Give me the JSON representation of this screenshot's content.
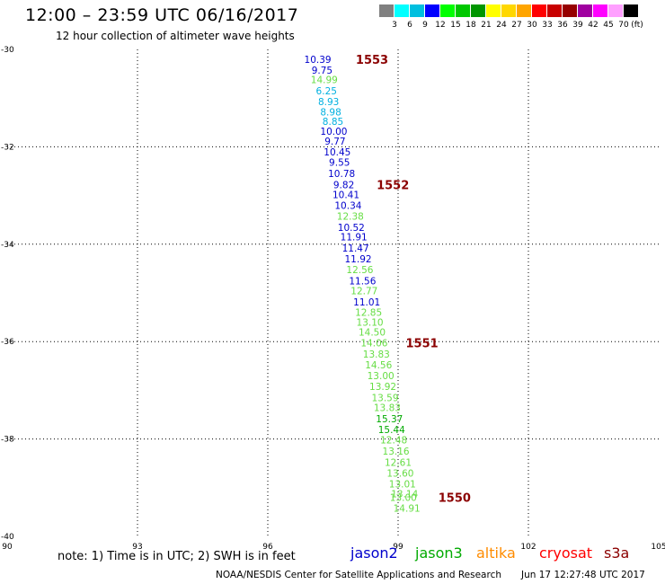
{
  "title": "12:00 – 23:59 UTC 06/16/2017",
  "subtitle": "12 hour collection of altimeter wave heights",
  "legend": {
    "unit": "(ft)",
    "colors": [
      "#808080",
      "#00ffff",
      "#00bfdf",
      "#0000ff",
      "#00ff00",
      "#00c800",
      "#009600",
      "#ffff00",
      "#ffd700",
      "#ffa500",
      "#ff0000",
      "#c80000",
      "#960000",
      "#a000a0",
      "#ff00ff",
      "#ffa0ff",
      "#000000"
    ],
    "labels": [
      "3",
      "6",
      "9",
      "12",
      "15",
      "18",
      "21",
      "24",
      "27",
      "30",
      "33",
      "36",
      "39",
      "42",
      "45",
      "70"
    ]
  },
  "axes": {
    "lon_min": 90,
    "lon_max": 105,
    "lat_min": -40,
    "lat_max": -30,
    "x_ticks": [
      "90",
      "93",
      "96",
      "99",
      "102",
      "105"
    ],
    "y_ticks": [
      "-30",
      "-32",
      "-34",
      "-36",
      "-38",
      "-40"
    ]
  },
  "observations": [
    {
      "lat": -30.2,
      "lon": 97.15,
      "v": "10.39",
      "c": "#0000cc"
    },
    {
      "lat": -30.42,
      "lon": 97.25,
      "v": "9.75",
      "c": "#0000cc"
    },
    {
      "lat": -30.62,
      "lon": 97.3,
      "v": "14.99",
      "c": "#66dd44"
    },
    {
      "lat": -30.85,
      "lon": 97.35,
      "v": "6.25",
      "c": "#00b0e0"
    },
    {
      "lat": -31.07,
      "lon": 97.4,
      "v": "8.93",
      "c": "#00b0e0"
    },
    {
      "lat": -31.28,
      "lon": 97.45,
      "v": "8.98",
      "c": "#00b0e0"
    },
    {
      "lat": -31.48,
      "lon": 97.5,
      "v": "8.85",
      "c": "#00b0e0"
    },
    {
      "lat": -31.68,
      "lon": 97.52,
      "v": "10.00",
      "c": "#0000cc"
    },
    {
      "lat": -31.88,
      "lon": 97.55,
      "v": "9.77",
      "c": "#0000cc"
    },
    {
      "lat": -32.1,
      "lon": 97.6,
      "v": "10.45",
      "c": "#0000cc"
    },
    {
      "lat": -32.32,
      "lon": 97.65,
      "v": "9.55",
      "c": "#0000cc"
    },
    {
      "lat": -32.55,
      "lon": 97.7,
      "v": "10.78",
      "c": "#0000cc"
    },
    {
      "lat": -32.78,
      "lon": 97.75,
      "v": "9.82",
      "c": "#0000cc"
    },
    {
      "lat": -32.98,
      "lon": 97.8,
      "v": "10.41",
      "c": "#0000cc"
    },
    {
      "lat": -33.2,
      "lon": 97.85,
      "v": "10.34",
      "c": "#0000cc"
    },
    {
      "lat": -33.42,
      "lon": 97.9,
      "v": "12.38",
      "c": "#66dd44"
    },
    {
      "lat": -33.65,
      "lon": 97.92,
      "v": "10.52",
      "c": "#0000cc"
    },
    {
      "lat": -33.85,
      "lon": 97.98,
      "v": "11.91",
      "c": "#0000cc"
    },
    {
      "lat": -34.08,
      "lon": 98.02,
      "v": "11.47",
      "c": "#0000cc"
    },
    {
      "lat": -34.3,
      "lon": 98.08,
      "v": "11.92",
      "c": "#0000cc"
    },
    {
      "lat": -34.52,
      "lon": 98.12,
      "v": "12.56",
      "c": "#66dd44"
    },
    {
      "lat": -34.75,
      "lon": 98.18,
      "v": "11.56",
      "c": "#0000cc"
    },
    {
      "lat": -34.95,
      "lon": 98.22,
      "v": "12.77",
      "c": "#66dd44"
    },
    {
      "lat": -35.18,
      "lon": 98.28,
      "v": "11.01",
      "c": "#0000cc"
    },
    {
      "lat": -35.4,
      "lon": 98.32,
      "v": "12.85",
      "c": "#66dd44"
    },
    {
      "lat": -35.6,
      "lon": 98.35,
      "v": "13.10",
      "c": "#66dd44"
    },
    {
      "lat": -35.8,
      "lon": 98.4,
      "v": "14.50",
      "c": "#66dd44"
    },
    {
      "lat": -36.02,
      "lon": 98.45,
      "v": "14.06",
      "c": "#66dd44"
    },
    {
      "lat": -36.25,
      "lon": 98.5,
      "v": "13.83",
      "c": "#66dd44"
    },
    {
      "lat": -36.48,
      "lon": 98.55,
      "v": "14.56",
      "c": "#66dd44"
    },
    {
      "lat": -36.7,
      "lon": 98.6,
      "v": "13.00",
      "c": "#66dd44"
    },
    {
      "lat": -36.92,
      "lon": 98.65,
      "v": "13.92",
      "c": "#66dd44"
    },
    {
      "lat": -37.15,
      "lon": 98.7,
      "v": "13.59",
      "c": "#66dd44"
    },
    {
      "lat": -37.35,
      "lon": 98.75,
      "v": "13.83",
      "c": "#66dd44"
    },
    {
      "lat": -37.58,
      "lon": 98.8,
      "v": "15.37",
      "c": "#00aa00"
    },
    {
      "lat": -37.8,
      "lon": 98.85,
      "v": "15.44",
      "c": "#00aa00"
    },
    {
      "lat": -38.02,
      "lon": 98.9,
      "v": "12.48",
      "c": "#66dd44"
    },
    {
      "lat": -38.25,
      "lon": 98.95,
      "v": "13.16",
      "c": "#66dd44"
    },
    {
      "lat": -38.48,
      "lon": 99.0,
      "v": "12.61",
      "c": "#66dd44"
    },
    {
      "lat": -38.7,
      "lon": 99.05,
      "v": "13.60",
      "c": "#66dd44"
    },
    {
      "lat": -38.92,
      "lon": 99.1,
      "v": "13.01",
      "c": "#66dd44"
    },
    {
      "lat": -39.12,
      "lon": 99.15,
      "v": "13.14",
      "c": "#66dd44"
    },
    {
      "lat": -39.2,
      "lon": 99.12,
      "v": "13.00",
      "c": "#66dd44"
    },
    {
      "lat": -39.42,
      "lon": 99.2,
      "v": "14.91",
      "c": "#66dd44"
    }
  ],
  "passes": [
    {
      "lat": -30.2,
      "lon": 98.4,
      "t": "1553"
    },
    {
      "lat": -32.78,
      "lon": 98.88,
      "t": "1552"
    },
    {
      "lat": -36.02,
      "lon": 99.55,
      "t": "1551"
    },
    {
      "lat": -39.2,
      "lon": 100.3,
      "t": "1550"
    }
  ],
  "note": "note: 1) Time is in UTC; 2) SWH is in feet",
  "satellites": [
    {
      "name": "jason2",
      "color": "#0000cc"
    },
    {
      "name": "jason3",
      "color": "#00aa00"
    },
    {
      "name": "altika",
      "color": "#ff8c00"
    },
    {
      "name": "cryosat",
      "color": "#ff0000"
    },
    {
      "name": "s3a",
      "color": "#8b0000"
    }
  ],
  "credit": "NOAA/NESDIS Center for Satellite Applications and Research",
  "timestamp": "Jun 17 12:27:48 UTC 2017"
}
